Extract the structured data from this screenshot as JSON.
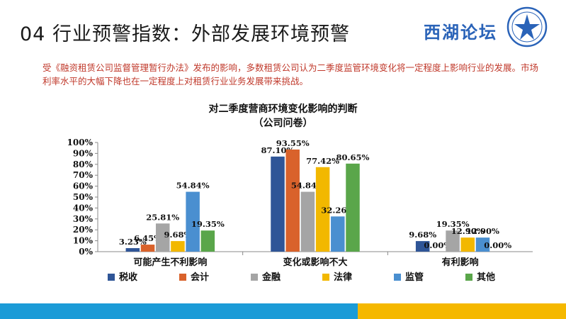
{
  "header": {
    "title": "04 行业预警指数：外部发展环境预警",
    "brand": "西湖论坛"
  },
  "intro": {
    "text": "受《融资租赁公司监督管理暂行办法》发布的影响，多数租赁公司认为二季度监管环境变化将一定程度上影响行业的发展。市场利率水平的大幅下降也在一定程度上对租赁行业业务发展带来挑战。"
  },
  "chart_data": {
    "type": "bar",
    "title": "对二季度营商环境变化影响的判断",
    "subtitle": "（公司问卷）",
    "categories": [
      "可能产生不利影响",
      "变化或影响不大",
      "有利影响"
    ],
    "series": [
      {
        "name": "税收",
        "color": "#2f5597",
        "values": [
          3.23,
          87.1,
          9.68
        ]
      },
      {
        "name": "会计",
        "color": "#d9622b",
        "values": [
          6.45,
          93.55,
          0.0
        ]
      },
      {
        "name": "金融",
        "color": "#a5a5a5",
        "values": [
          25.81,
          54.84,
          19.35
        ]
      },
      {
        "name": "法律",
        "color": "#f2b800",
        "values": [
          9.68,
          77.42,
          12.9
        ]
      },
      {
        "name": "监管",
        "color": "#4a8fd0",
        "values": [
          54.84,
          32.26,
          12.9
        ]
      },
      {
        "name": "其他",
        "color": "#5aa64a",
        "values": [
          19.35,
          80.65,
          0.0
        ]
      }
    ],
    "ylim": [
      0,
      100
    ],
    "yticks": [
      "0%",
      "10%",
      "20%",
      "30%",
      "40%",
      "50%",
      "60%",
      "70%",
      "80%",
      "90%",
      "100%"
    ],
    "value_format": "percent_2dp",
    "legend_position": "bottom",
    "grid": false
  },
  "colors": {
    "footer_left": "#1b9bd7",
    "footer_right": "#f5b800",
    "intro_text": "#c0392b",
    "brand": "#2a63b8"
  }
}
